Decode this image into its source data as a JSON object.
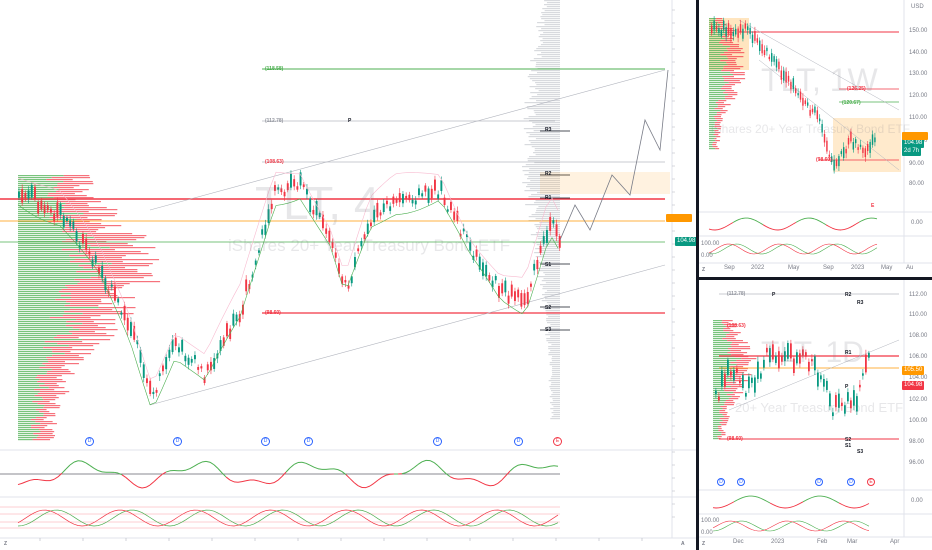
{
  "left_chart": {
    "watermark_symbol": "TLT, 4",
    "watermark_name": "iShares 20+ Year Treasury Bond ETF",
    "current_price_tag": "104.98",
    "price_level_tags": [
      "(118.58)",
      "(112.78)",
      "(108.63)",
      "(98.60)"
    ],
    "pivot_labels": [
      "R3",
      "P",
      "R2",
      "R1",
      "S1",
      "S2",
      "S3"
    ],
    "event_markers": [
      "D",
      "D",
      "D",
      "D",
      "D",
      "D",
      "E"
    ],
    "corner_mark": "A",
    "axis_mark": "Z",
    "colors": {
      "up": "#089981",
      "down": "#f23645",
      "green_line": "#4caf50",
      "red_line": "#f23645",
      "orange": "#ff9800"
    }
  },
  "top_right_chart": {
    "currency": "USD",
    "watermark_symbol": "TLT, 1W",
    "watermark_name": "iShares 20+ Year Treasury Bond ETF",
    "price_scale": [
      "150.00",
      "140.00",
      "130.00",
      "120.00",
      "110.00",
      "100.00",
      "90.00",
      "80.00"
    ],
    "price_tag": "104.98",
    "price_subtag": "2d 7h",
    "price_level_tags": [
      "(126.25)",
      "(120.67)",
      "(98.60)"
    ],
    "time_axis": [
      "Sep",
      "2022",
      "May",
      "Sep",
      "2023",
      "May",
      "Au"
    ],
    "osc_scale": [
      "0.00",
      "100.00",
      "0.00"
    ],
    "event_marker": "E",
    "axis_mark": "Z"
  },
  "bottom_right_chart": {
    "price_scale": [
      "112.00",
      "110.00",
      "108.00",
      "106.00",
      "104.00",
      "102.00",
      "100.00",
      "98.00",
      "96.00"
    ],
    "watermark_symbol": "TLT, 1D",
    "watermark_name": "20+ Year Treasury Bond ETF",
    "price_tag": "104.98",
    "orange_tag": "105.50",
    "price_level_tags": [
      "(112.78)",
      "(108.63)",
      "(98.60)"
    ],
    "pivot_labels": [
      "P",
      "R2",
      "R3",
      "R1",
      "P",
      "S1",
      "S2",
      "S3"
    ],
    "event_markers": [
      "D",
      "D",
      "D",
      "D",
      "E"
    ],
    "time_axis": [
      "Dec",
      "2023",
      "Feb",
      "Mar",
      "Apr"
    ],
    "osc_scale": [
      "0.00",
      "100.00",
      "0.00"
    ],
    "axis_mark": "Z"
  }
}
